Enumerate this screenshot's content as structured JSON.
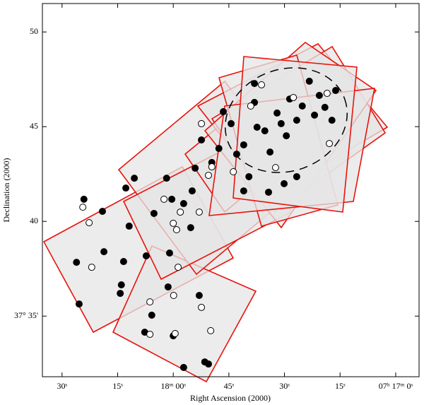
{
  "chart_data": {
    "type": "scatter",
    "xlabel": "Right Ascension (2000)",
    "ylabel": "Declination (2000)",
    "xlim": [
      95.3,
      -6.3
    ],
    "ylim": [
      31.8,
      51.5
    ],
    "xticks": [
      {
        "value": 90,
        "label": "30ˢ"
      },
      {
        "value": 75,
        "label": "15ˢ"
      },
      {
        "value": 60,
        "label": "18ᵐ 00ˢ"
      },
      {
        "value": 45,
        "label": "45ˢ"
      },
      {
        "value": 30,
        "label": "30ˢ"
      },
      {
        "value": 15,
        "label": "15ˢ"
      },
      {
        "value": 0,
        "label": "07ʰ 17ᵐ 0ˢ"
      }
    ],
    "yticks": [
      {
        "value": 35,
        "label": "37° 35'"
      },
      40,
      45,
      50
    ],
    "series": [
      {
        "color": "#000000",
        "filled": true,
        "x": [
          86.1,
          84.1,
          85.4,
          79.1,
          78.7,
          74.3,
          74.0,
          73.4,
          72.8,
          70.5,
          67.3,
          65.8,
          65.2,
          61.8,
          61.0,
          60.4,
          61.4,
          57.2,
          55.3,
          54.9,
          54.1,
          53.0,
          51.5,
          52.4,
          49.6,
          47.7,
          46.5,
          44.4,
          42.9,
          41.0,
          39.6,
          38.1,
          37.4,
          35.3,
          33.9,
          32.0,
          30.9,
          29.5,
          28.6,
          26.7,
          25.2,
          23.3,
          21.9,
          20.6,
          19.1,
          17.2,
          16.2,
          30.1,
          34.3,
          41.0,
          67.7,
          60.0,
          57.2,
          50.5,
          71.9,
          26.7,
          38.1
        ],
        "y": [
          37.84,
          41.17,
          35.64,
          40.53,
          38.4,
          36.2,
          36.65,
          37.88,
          41.76,
          42.28,
          38.18,
          35.05,
          40.42,
          42.28,
          38.33,
          41.17,
          36.54,
          40.94,
          39.67,
          41.61,
          42.81,
          36.09,
          32.58,
          44.3,
          43.11,
          43.85,
          45.79,
          45.16,
          43.55,
          44.04,
          42.36,
          46.28,
          44.97,
          44.78,
          43.66,
          45.72,
          45.16,
          44.52,
          46.46,
          45.34,
          46.09,
          47.4,
          45.61,
          46.65,
          46.02,
          45.34,
          46.91,
          41.99,
          41.54,
          41.61,
          34.15,
          33.96,
          32.29,
          32.47,
          39.75,
          42.36,
          47.28
        ]
      },
      {
        "color": "#000000",
        "filled": false,
        "x": [
          84.4,
          82.7,
          82.0,
          66.3,
          62.5,
          60.0,
          59.1,
          58.7,
          59.9,
          58.1,
          53.0,
          52.4,
          50.5,
          49.6,
          43.8,
          39.1,
          36.2,
          32.4,
          27.6,
          18.5,
          17.9,
          66.3,
          59.5,
          52.4,
          49.9
        ],
        "y": [
          40.75,
          39.93,
          37.58,
          35.75,
          41.17,
          39.9,
          39.56,
          37.58,
          36.09,
          40.49,
          40.49,
          45.16,
          42.43,
          42.88,
          42.62,
          46.09,
          47.21,
          42.84,
          46.54,
          46.76,
          44.11,
          34.04,
          34.08,
          35.46,
          34.23
        ]
      }
    ]
  }
}
